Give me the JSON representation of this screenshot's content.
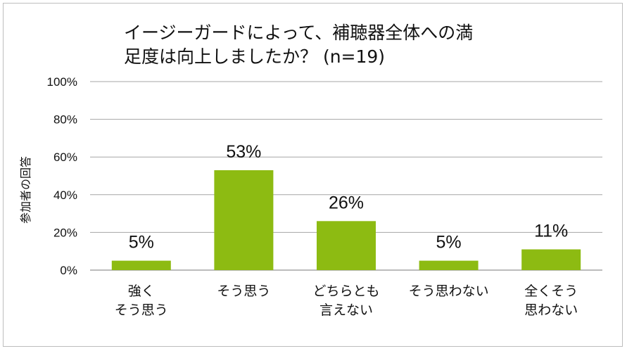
{
  "chart_data": {
    "type": "bar",
    "title_lines": [
      "イージーガードによって、補聴器全体への満",
      "足度は向上しましたか？ (n=19)"
    ],
    "ylabel": "参加者の回答",
    "ylim": [
      0,
      100
    ],
    "yticks": [
      0,
      20,
      40,
      60,
      80,
      100
    ],
    "ytick_labels": [
      "0%",
      "20%",
      "40%",
      "60%",
      "80%",
      "100%"
    ],
    "grid": true,
    "categories": [
      [
        "強く",
        "そう思う"
      ],
      [
        "そう思う"
      ],
      [
        "どちらとも",
        "言えない"
      ],
      [
        "そう思わない"
      ],
      [
        "全くそう",
        "思わない"
      ]
    ],
    "values": [
      5,
      53,
      26,
      5,
      11
    ],
    "value_labels": [
      "5%",
      "53%",
      "26%",
      "5%",
      "11%"
    ],
    "bar_color": "#8dbb12",
    "grid_color": "#a6a6a6"
  }
}
